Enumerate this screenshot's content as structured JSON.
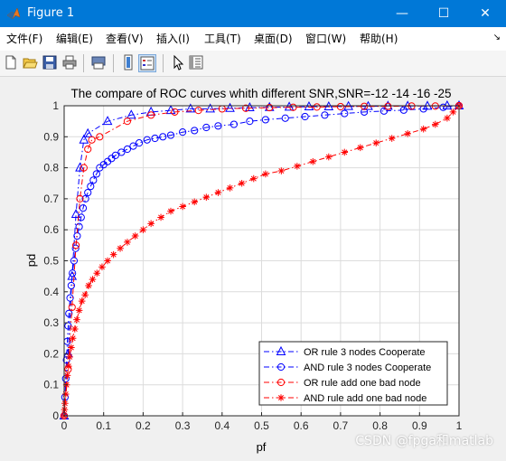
{
  "window": {
    "title": "Figure 1",
    "minimize_glyph": "—",
    "maximize_glyph": "☐",
    "close_glyph": "✕"
  },
  "menu": {
    "items": [
      {
        "label": "文件(F)"
      },
      {
        "label": "编辑(E)"
      },
      {
        "label": "查看(V)"
      },
      {
        "label": "插入(I)"
      },
      {
        "label": "工具(T)"
      },
      {
        "label": "桌面(D)"
      },
      {
        "label": "窗口(W)"
      },
      {
        "label": "帮助(H)"
      }
    ],
    "overflow_glyph": "↘"
  },
  "toolbar": {
    "icons": [
      "new-figure-icon",
      "open-file-icon",
      "save-icon",
      "print-icon",
      "print-preview-icon",
      "insert-colorbar-icon",
      "insert-legend-icon",
      "edit-plot-cursor-icon",
      "property-inspector-icon"
    ]
  },
  "chart_data": {
    "type": "line",
    "title": "The compare of ROC curves whith different SNR,SNR=-12 -14 -16 -25",
    "xlabel": "pf",
    "ylabel": "pd",
    "xlim": [
      0,
      1
    ],
    "ylim": [
      0,
      1
    ],
    "xticks": [
      "0",
      "0.1",
      "0.2",
      "0.3",
      "0.4",
      "0.5",
      "0.6",
      "0.7",
      "0.8",
      "0.9",
      "1"
    ],
    "yticks": [
      "0",
      "0.1",
      "0.2",
      "0.3",
      "0.4",
      "0.5",
      "0.6",
      "0.7",
      "0.8",
      "0.9",
      "1"
    ],
    "grid": true,
    "legend_position": "bottom-right",
    "series": [
      {
        "name": "OR rule 3 nodes Cooperate",
        "color": "#0000ff",
        "marker": "triangle",
        "line": "dashdot",
        "x": [
          0.0,
          0.01,
          0.02,
          0.03,
          0.04,
          0.05,
          0.06,
          0.11,
          0.17,
          0.22,
          0.27,
          0.32,
          0.37,
          0.42,
          0.47,
          0.52,
          0.57,
          0.62,
          0.67,
          0.72,
          0.77,
          0.82,
          0.87,
          0.92,
          0.97,
          1.0
        ],
        "y": [
          0.0,
          0.2,
          0.45,
          0.65,
          0.8,
          0.89,
          0.91,
          0.95,
          0.97,
          0.98,
          0.985,
          0.99,
          0.99,
          0.992,
          0.994,
          0.995,
          0.996,
          0.997,
          0.997,
          0.998,
          0.998,
          0.999,
          0.999,
          0.999,
          1.0,
          1.0
        ]
      },
      {
        "name": "AND rule 3 nodes Cooperate",
        "color": "#0000ff",
        "marker": "circle",
        "line": "dashdot",
        "x": [
          0.0,
          0.002,
          0.004,
          0.006,
          0.008,
          0.01,
          0.012,
          0.015,
          0.018,
          0.021,
          0.025,
          0.029,
          0.033,
          0.038,
          0.043,
          0.048,
          0.054,
          0.06,
          0.067,
          0.074,
          0.082,
          0.09,
          0.1,
          0.11,
          0.12,
          0.13,
          0.145,
          0.16,
          0.175,
          0.19,
          0.21,
          0.23,
          0.25,
          0.27,
          0.3,
          0.33,
          0.36,
          0.39,
          0.43,
          0.47,
          0.51,
          0.56,
          0.61,
          0.66,
          0.71,
          0.76,
          0.81,
          0.86,
          0.91,
          0.96,
          1.0
        ],
        "y": [
          0.0,
          0.06,
          0.12,
          0.18,
          0.24,
          0.29,
          0.33,
          0.38,
          0.42,
          0.46,
          0.5,
          0.54,
          0.58,
          0.61,
          0.64,
          0.67,
          0.7,
          0.72,
          0.74,
          0.76,
          0.78,
          0.8,
          0.81,
          0.82,
          0.83,
          0.84,
          0.85,
          0.86,
          0.87,
          0.88,
          0.89,
          0.895,
          0.9,
          0.905,
          0.915,
          0.92,
          0.93,
          0.935,
          0.94,
          0.95,
          0.955,
          0.96,
          0.965,
          0.97,
          0.975,
          0.98,
          0.983,
          0.986,
          0.99,
          0.995,
          1.0
        ]
      },
      {
        "name": "OR rule add one bad node",
        "color": "#ff0000",
        "marker": "circle",
        "line": "dashdot",
        "x": [
          0.0,
          0.01,
          0.02,
          0.03,
          0.04,
          0.05,
          0.06,
          0.07,
          0.09,
          0.16,
          0.22,
          0.28,
          0.34,
          0.4,
          0.46,
          0.52,
          0.58,
          0.64,
          0.7,
          0.76,
          0.82,
          0.88,
          0.94,
          1.0
        ],
        "y": [
          0.0,
          0.15,
          0.35,
          0.55,
          0.7,
          0.8,
          0.86,
          0.89,
          0.9,
          0.95,
          0.97,
          0.98,
          0.985,
          0.99,
          0.992,
          0.994,
          0.995,
          0.996,
          0.997,
          0.998,
          0.998,
          0.999,
          0.999,
          1.0
        ]
      },
      {
        "name": "AND rule add one bad node",
        "color": "#ff0000",
        "marker": "star",
        "line": "dashdot",
        "x": [
          0.0,
          0.001,
          0.002,
          0.004,
          0.006,
          0.008,
          0.011,
          0.014,
          0.018,
          0.022,
          0.027,
          0.032,
          0.038,
          0.045,
          0.053,
          0.062,
          0.072,
          0.083,
          0.096,
          0.11,
          0.125,
          0.142,
          0.16,
          0.18,
          0.2,
          0.22,
          0.245,
          0.27,
          0.3,
          0.33,
          0.36,
          0.39,
          0.42,
          0.45,
          0.48,
          0.51,
          0.55,
          0.59,
          0.63,
          0.67,
          0.71,
          0.75,
          0.79,
          0.83,
          0.87,
          0.91,
          0.94,
          0.97,
          0.985,
          1.0
        ],
        "y": [
          0.0,
          0.02,
          0.04,
          0.07,
          0.1,
          0.13,
          0.16,
          0.19,
          0.22,
          0.25,
          0.28,
          0.31,
          0.34,
          0.37,
          0.39,
          0.42,
          0.44,
          0.46,
          0.48,
          0.5,
          0.52,
          0.54,
          0.56,
          0.58,
          0.6,
          0.62,
          0.64,
          0.66,
          0.675,
          0.69,
          0.705,
          0.72,
          0.735,
          0.75,
          0.765,
          0.78,
          0.79,
          0.805,
          0.82,
          0.835,
          0.85,
          0.865,
          0.88,
          0.895,
          0.91,
          0.925,
          0.94,
          0.96,
          0.98,
          1.0
        ]
      }
    ]
  },
  "watermark": {
    "text": "CSDN @fpga和matlab"
  }
}
